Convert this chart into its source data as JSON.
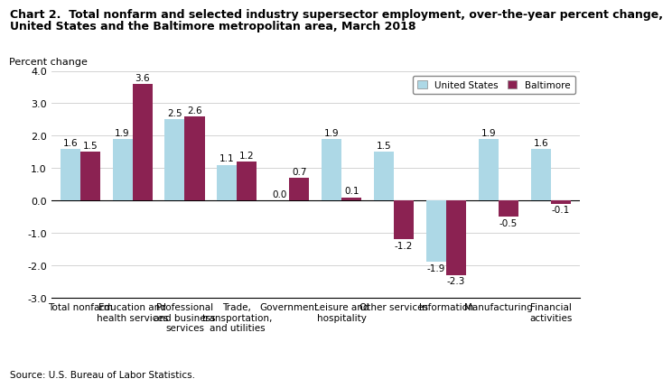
{
  "title_line1": "Chart 2.  Total nonfarm and selected industry supersector employment, over-the-year percent change,",
  "title_line2": "United States and the Baltimore metropolitan area, March 2018",
  "ylabel": "Percent change",
  "source": "Source: U.S. Bureau of Labor Statistics.",
  "categories": [
    "Total nonfarm",
    "Education and\nhealth services",
    "Professional\nand business\nservices",
    "Trade,\ntransportation,\nand utilities",
    "Government",
    "Leisure and\nhospitality",
    "Other services",
    "Information",
    "Manufacturing",
    "Financial\nactivities"
  ],
  "us_values": [
    1.6,
    1.9,
    2.5,
    1.1,
    0.0,
    1.9,
    1.5,
    -1.9,
    1.9,
    1.6
  ],
  "balt_values": [
    1.5,
    3.6,
    2.6,
    1.2,
    0.7,
    0.1,
    -1.2,
    -2.3,
    -0.5,
    -0.1
  ],
  "us_color": "#ADD8E6",
  "balt_color": "#8B2252",
  "ylim": [
    -3.0,
    4.0
  ],
  "yticks": [
    -3.0,
    -2.0,
    -1.0,
    0.0,
    1.0,
    2.0,
    3.0,
    4.0
  ],
  "legend_us": "United States",
  "legend_balt": "Baltimore",
  "bar_width": 0.38,
  "title_fontsize": 9,
  "label_fontsize": 7.5,
  "tick_fontsize": 8,
  "ylabel_fontsize": 8
}
